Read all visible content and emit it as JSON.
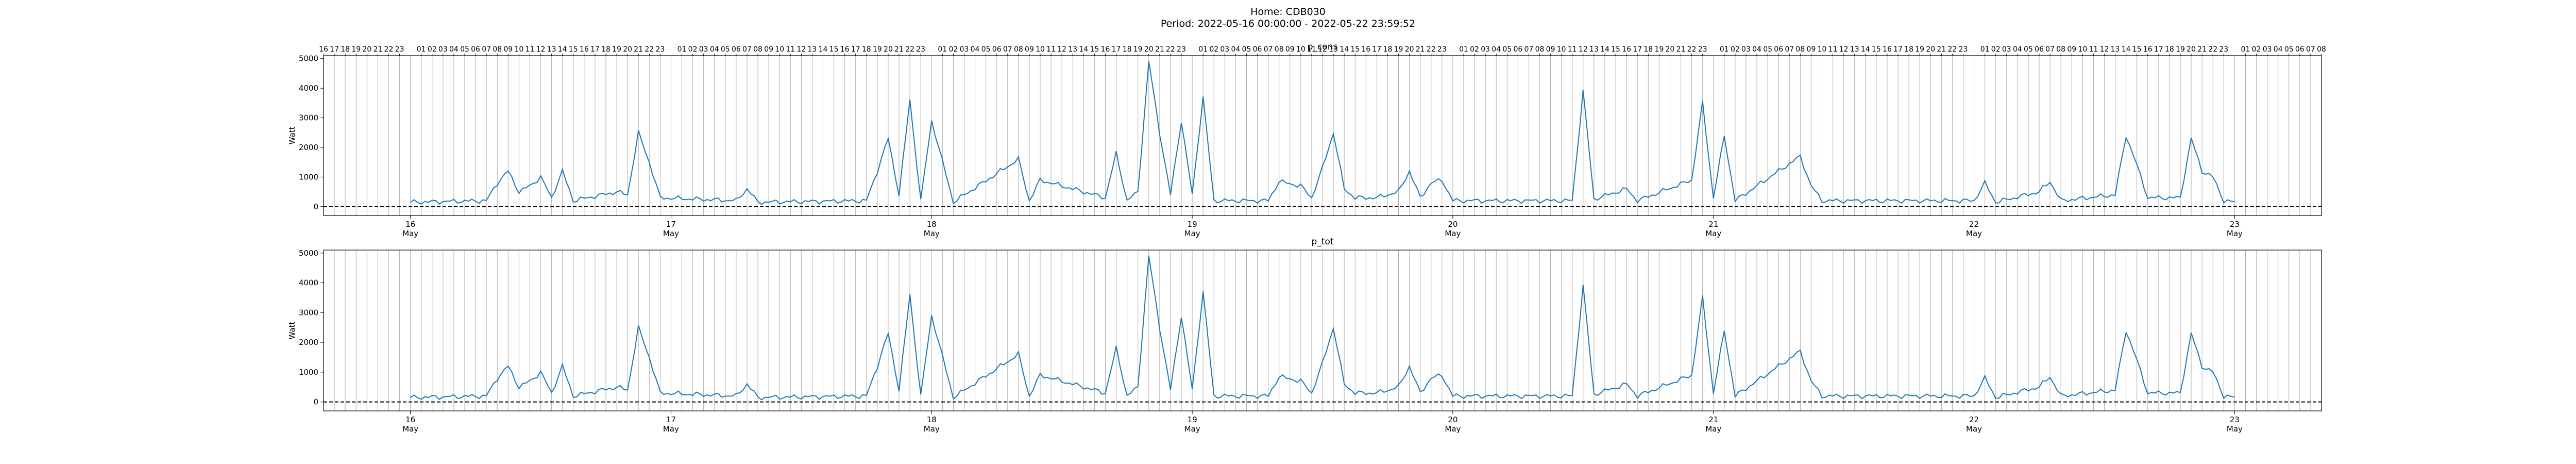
{
  "figure": {
    "title_line1": "Home: CDB030",
    "title_line2": "Period: 2022-05-16 00:00:00 - 2022-05-22 23:59:52"
  },
  "chart_data": [
    {
      "type": "line",
      "title": "p_cons",
      "ylabel": "Watt",
      "xlabel": "",
      "ylim": [
        -300,
        5100
      ],
      "yticks": [
        0,
        1000,
        2000,
        3000,
        4000,
        5000
      ],
      "xlim": [
        "2022-05-15 16:00",
        "2022-05-23 08:00"
      ],
      "date_ticks": [
        {
          "day": "16",
          "month": "May"
        },
        {
          "day": "17",
          "month": "May"
        },
        {
          "day": "18",
          "month": "May"
        },
        {
          "day": "19",
          "month": "May"
        },
        {
          "day": "20",
          "month": "May"
        },
        {
          "day": "21",
          "month": "May"
        },
        {
          "day": "22",
          "month": "May"
        },
        {
          "day": "23",
          "month": "May"
        }
      ],
      "hour_grid": true,
      "hour_labels_top": true,
      "zero_line": "dashed",
      "series": [
        {
          "color": "#1f77b4",
          "points": [
            [
              "2022-05-16 00:00",
              150
            ],
            [
              "2022-05-16 07:00",
              200
            ],
            [
              "2022-05-16 08:00",
              800
            ],
            [
              "2022-05-16 09:00",
              1200
            ],
            [
              "2022-05-16 10:00",
              500
            ],
            [
              "2022-05-16 11:00",
              700
            ],
            [
              "2022-05-16 12:00",
              1000
            ],
            [
              "2022-05-16 13:00",
              300
            ],
            [
              "2022-05-16 14:00",
              1200
            ],
            [
              "2022-05-16 15:00",
              200
            ],
            [
              "2022-05-16 19:00",
              500
            ],
            [
              "2022-05-16 20:00",
              400
            ],
            [
              "2022-05-16 21:00",
              2500
            ],
            [
              "2022-05-16 22:00",
              1500
            ],
            [
              "2022-05-16 23:00",
              300
            ],
            [
              "2022-05-17 06:00",
              200
            ],
            [
              "2022-05-17 07:00",
              600
            ],
            [
              "2022-05-17 08:00",
              150
            ],
            [
              "2022-05-17 18:00",
              200
            ],
            [
              "2022-05-17 19:00",
              1200
            ],
            [
              "2022-05-17 20:00",
              2300
            ],
            [
              "2022-05-17 21:00",
              400
            ],
            [
              "2022-05-17 22:00",
              3600
            ],
            [
              "2022-05-17 23:00",
              200
            ],
            [
              "2022-05-18 00:00",
              2900
            ],
            [
              "2022-05-18 02:00",
              150
            ],
            [
              "2022-05-18 08:00",
              1600
            ],
            [
              "2022-05-18 09:00",
              200
            ],
            [
              "2022-05-18 10:00",
              900
            ],
            [
              "2022-05-18 16:00",
              300
            ],
            [
              "2022-05-18 17:00",
              1800
            ],
            [
              "2022-05-18 18:00",
              200
            ],
            [
              "2022-05-18 19:00",
              500
            ],
            [
              "2022-05-18 20:00",
              4900
            ],
            [
              "2022-05-18 21:00",
              2500
            ],
            [
              "2022-05-18 22:00",
              400
            ],
            [
              "2022-05-18 23:00",
              2900
            ],
            [
              "2022-05-19 00:00",
              400
            ],
            [
              "2022-05-19 01:00",
              3700
            ],
            [
              "2022-05-19 02:00",
              200
            ],
            [
              "2022-05-19 07:00",
              200
            ],
            [
              "2022-05-19 08:00",
              850
            ],
            [
              "2022-05-19 10:00",
              700
            ],
            [
              "2022-05-19 11:00",
              300
            ],
            [
              "2022-05-19 12:00",
              1300
            ],
            [
              "2022-05-19 13:00",
              2500
            ],
            [
              "2022-05-19 14:00",
              600
            ],
            [
              "2022-05-19 15:00",
              300
            ],
            [
              "2022-05-19 17:00",
              300
            ],
            [
              "2022-05-19 19:00",
              500
            ],
            [
              "2022-05-19 20:00",
              1200
            ],
            [
              "2022-05-19 21:00",
              300
            ],
            [
              "2022-05-19 22:00",
              800
            ],
            [
              "2022-05-19 23:00",
              900
            ],
            [
              "2022-05-20 00:00",
              200
            ],
            [
              "2022-05-20 11:00",
              200
            ],
            [
              "2022-05-20 12:00",
              3900
            ],
            [
              "2022-05-20 13:00",
              250
            ],
            [
              "2022-05-20 16:00",
              600
            ],
            [
              "2022-05-20 17:00",
              200
            ],
            [
              "2022-05-20 22:00",
              900
            ],
            [
              "2022-05-20 23:00",
              3500
            ],
            [
              "2022-05-21 00:00",
              300
            ],
            [
              "2022-05-21 01:00",
              2400
            ],
            [
              "2022-05-21 02:00",
              200
            ],
            [
              "2022-05-21 08:00",
              1700
            ],
            [
              "2022-05-21 09:00",
              700
            ],
            [
              "2022-05-21 10:00",
              200
            ],
            [
              "2022-05-22 00:00",
              200
            ],
            [
              "2022-05-22 01:00",
              800
            ],
            [
              "2022-05-22 02:00",
              150
            ],
            [
              "2022-05-22 06:00",
              500
            ],
            [
              "2022-05-22 07:00",
              850
            ],
            [
              "2022-05-22 08:00",
              200
            ],
            [
              "2022-05-22 13:00",
              400
            ],
            [
              "2022-05-22 14:00",
              2400
            ],
            [
              "2022-05-22 15:00",
              1400
            ],
            [
              "2022-05-22 16:00",
              300
            ],
            [
              "2022-05-22 19:00",
              300
            ],
            [
              "2022-05-22 20:00",
              2300
            ],
            [
              "2022-05-22 21:00",
              1200
            ],
            [
              "2022-05-22 22:00",
              1000
            ],
            [
              "2022-05-22 23:00",
              200
            ],
            [
              "2022-05-23 00:00",
              150
            ]
          ]
        }
      ]
    },
    {
      "type": "line",
      "title": "p_tot",
      "ylabel": "Watt",
      "xlabel": "",
      "ylim": [
        -300,
        5100
      ],
      "yticks": [
        0,
        1000,
        2000,
        3000,
        4000,
        5000
      ],
      "xlim": [
        "2022-05-15 16:00",
        "2022-05-23 08:00"
      ],
      "date_ticks": [
        {
          "day": "16",
          "month": "May"
        },
        {
          "day": "17",
          "month": "May"
        },
        {
          "day": "18",
          "month": "May"
        },
        {
          "day": "19",
          "month": "May"
        },
        {
          "day": "20",
          "month": "May"
        },
        {
          "day": "21",
          "month": "May"
        },
        {
          "day": "22",
          "month": "May"
        },
        {
          "day": "23",
          "month": "May"
        }
      ],
      "hour_grid": true,
      "hour_labels_top": false,
      "zero_line": "dashed",
      "series": [
        {
          "color": "#1f77b4",
          "points": [
            [
              "2022-05-16 00:00",
              150
            ],
            [
              "2022-05-16 07:00",
              200
            ],
            [
              "2022-05-16 08:00",
              800
            ],
            [
              "2022-05-16 09:00",
              1200
            ],
            [
              "2022-05-16 10:00",
              500
            ],
            [
              "2022-05-16 11:00",
              700
            ],
            [
              "2022-05-16 12:00",
              1000
            ],
            [
              "2022-05-16 13:00",
              300
            ],
            [
              "2022-05-16 14:00",
              1200
            ],
            [
              "2022-05-16 15:00",
              200
            ],
            [
              "2022-05-16 19:00",
              500
            ],
            [
              "2022-05-16 20:00",
              400
            ],
            [
              "2022-05-16 21:00",
              2500
            ],
            [
              "2022-05-16 22:00",
              1500
            ],
            [
              "2022-05-16 23:00",
              300
            ],
            [
              "2022-05-17 06:00",
              200
            ],
            [
              "2022-05-17 07:00",
              600
            ],
            [
              "2022-05-17 08:00",
              150
            ],
            [
              "2022-05-17 18:00",
              200
            ],
            [
              "2022-05-17 19:00",
              1200
            ],
            [
              "2022-05-17 20:00",
              2300
            ],
            [
              "2022-05-17 21:00",
              400
            ],
            [
              "2022-05-17 22:00",
              3600
            ],
            [
              "2022-05-17 23:00",
              200
            ],
            [
              "2022-05-18 00:00",
              2900
            ],
            [
              "2022-05-18 02:00",
              150
            ],
            [
              "2022-05-18 08:00",
              1600
            ],
            [
              "2022-05-18 09:00",
              200
            ],
            [
              "2022-05-18 10:00",
              900
            ],
            [
              "2022-05-18 16:00",
              300
            ],
            [
              "2022-05-18 17:00",
              1800
            ],
            [
              "2022-05-18 18:00",
              200
            ],
            [
              "2022-05-18 19:00",
              500
            ],
            [
              "2022-05-18 20:00",
              4900
            ],
            [
              "2022-05-18 21:00",
              2500
            ],
            [
              "2022-05-18 22:00",
              400
            ],
            [
              "2022-05-18 23:00",
              2900
            ],
            [
              "2022-05-19 00:00",
              400
            ],
            [
              "2022-05-19 01:00",
              3700
            ],
            [
              "2022-05-19 02:00",
              200
            ],
            [
              "2022-05-19 07:00",
              200
            ],
            [
              "2022-05-19 08:00",
              850
            ],
            [
              "2022-05-19 10:00",
              700
            ],
            [
              "2022-05-19 11:00",
              300
            ],
            [
              "2022-05-19 12:00",
              1300
            ],
            [
              "2022-05-19 13:00",
              2500
            ],
            [
              "2022-05-19 14:00",
              600
            ],
            [
              "2022-05-19 15:00",
              300
            ],
            [
              "2022-05-19 17:00",
              300
            ],
            [
              "2022-05-19 19:00",
              500
            ],
            [
              "2022-05-19 20:00",
              1200
            ],
            [
              "2022-05-19 21:00",
              300
            ],
            [
              "2022-05-19 22:00",
              800
            ],
            [
              "2022-05-19 23:00",
              900
            ],
            [
              "2022-05-20 00:00",
              200
            ],
            [
              "2022-05-20 11:00",
              200
            ],
            [
              "2022-05-20 12:00",
              3900
            ],
            [
              "2022-05-20 13:00",
              250
            ],
            [
              "2022-05-20 16:00",
              600
            ],
            [
              "2022-05-20 17:00",
              200
            ],
            [
              "2022-05-20 22:00",
              900
            ],
            [
              "2022-05-20 23:00",
              3500
            ],
            [
              "2022-05-21 00:00",
              300
            ],
            [
              "2022-05-21 01:00",
              2400
            ],
            [
              "2022-05-21 02:00",
              200
            ],
            [
              "2022-05-21 08:00",
              1700
            ],
            [
              "2022-05-21 09:00",
              700
            ],
            [
              "2022-05-21 10:00",
              200
            ],
            [
              "2022-05-22 00:00",
              200
            ],
            [
              "2022-05-22 01:00",
              800
            ],
            [
              "2022-05-22 02:00",
              150
            ],
            [
              "2022-05-22 06:00",
              500
            ],
            [
              "2022-05-22 07:00",
              850
            ],
            [
              "2022-05-22 08:00",
              200
            ],
            [
              "2022-05-22 13:00",
              400
            ],
            [
              "2022-05-22 14:00",
              2400
            ],
            [
              "2022-05-22 15:00",
              1400
            ],
            [
              "2022-05-22 16:00",
              300
            ],
            [
              "2022-05-22 19:00",
              300
            ],
            [
              "2022-05-22 20:00",
              2300
            ],
            [
              "2022-05-22 21:00",
              1200
            ],
            [
              "2022-05-22 22:00",
              1000
            ],
            [
              "2022-05-22 23:00",
              200
            ],
            [
              "2022-05-23 00:00",
              150
            ]
          ]
        }
      ]
    }
  ]
}
